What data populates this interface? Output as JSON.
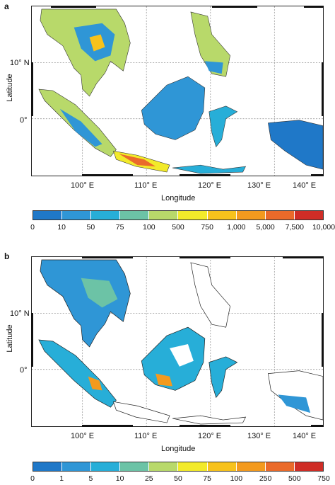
{
  "panels": [
    {
      "letter": "a",
      "ylabel": "Latitude",
      "xlabel": "Longitude",
      "lat_ticks": [
        "10° N",
        "0°"
      ],
      "lon_ticks": [
        "100° E",
        "110° E",
        "120° E",
        "130° E",
        "140° E"
      ],
      "colorbar_labels": [
        "0",
        "10",
        "50",
        "75",
        "100",
        "500",
        "750",
        "1,000",
        "5,000",
        "7,500",
        "10,000"
      ]
    },
    {
      "letter": "b",
      "ylabel": "Latitude",
      "xlabel": "Longitude",
      "lat_ticks": [
        "10° N",
        "0°"
      ],
      "lon_ticks": [
        "100° E",
        "110° E",
        "120° E",
        "130° E",
        "140° E"
      ],
      "colorbar_labels": [
        "0",
        "1",
        "5",
        "10",
        "25",
        "50",
        "75",
        "100",
        "250",
        "500",
        "750"
      ]
    }
  ],
  "colorbar_colors": [
    "#1f78c8",
    "#2f96d6",
    "#27aed8",
    "#6cc3a6",
    "#b8d96a",
    "#f2ea2a",
    "#f7c21c",
    "#f39a1e",
    "#ea6a2a",
    "#cf2d26"
  ]
}
